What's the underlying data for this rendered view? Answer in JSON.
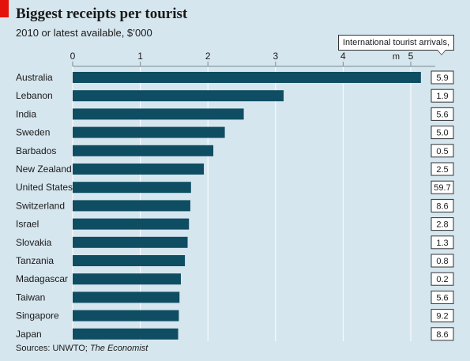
{
  "header": {
    "title": "Biggest receipts per tourist",
    "subtitle": "2010 or latest available, $’000"
  },
  "footer": {
    "source_prefix": "Sources: UNWTO; ",
    "source_italic": "The Economist"
  },
  "callout": {
    "label": "International tourist arrivals, m"
  },
  "colors": {
    "bar": "#0f4d63",
    "background": "#d6e6ee",
    "accent": "#e3120b"
  },
  "chart_data": {
    "type": "bar",
    "orientation": "horizontal",
    "title": "Biggest receipts per tourist",
    "subtitle": "2010 or latest available, $’000",
    "xlim": [
      0,
      5.5
    ],
    "xticks": [
      0,
      1,
      2,
      3,
      4,
      5
    ],
    "grid": true,
    "categories": [
      "Australia",
      "Lebanon",
      "India",
      "Sweden",
      "Barbados",
      "New Zealand",
      "United States",
      "Switzerland",
      "Israel",
      "Slovakia",
      "Tanzania",
      "Madagascar",
      "Taiwan",
      "Singapore",
      "Japan"
    ],
    "values": [
      5.15,
      3.12,
      2.53,
      2.25,
      2.08,
      1.94,
      1.75,
      1.74,
      1.72,
      1.7,
      1.66,
      1.6,
      1.58,
      1.57,
      1.56
    ],
    "annotations": {
      "name": "International tourist arrivals, m",
      "values": [
        "5.9",
        "1.9",
        "5.6",
        "5.0",
        "0.5",
        "2.5",
        "59.7",
        "8.6",
        "2.8",
        "1.3",
        "0.8",
        "0.2",
        "5.6",
        "9.2",
        "8.6"
      ]
    }
  }
}
